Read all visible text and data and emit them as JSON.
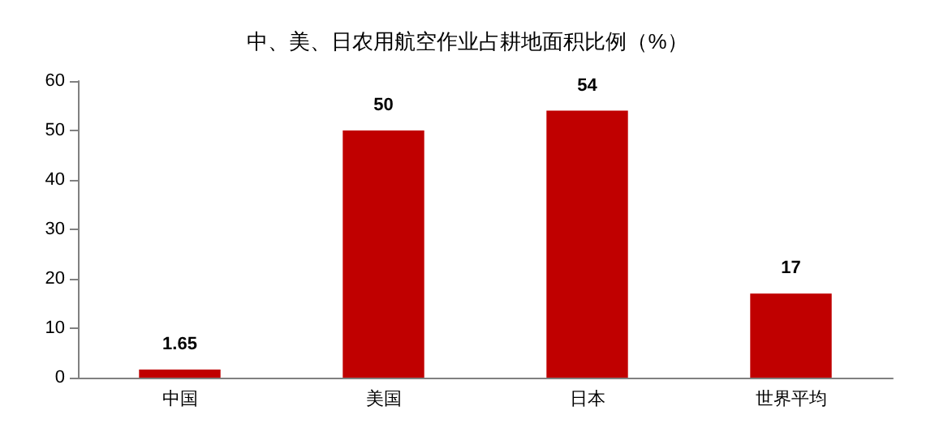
{
  "chart_data": {
    "type": "bar",
    "title": "中、美、日农用航空作业占耕地面积比例（%）",
    "categories": [
      "中国",
      "美国",
      "日本",
      "世界平均"
    ],
    "values": [
      1.65,
      50,
      54,
      17
    ],
    "color": "#c00000",
    "ylim": [
      0,
      60
    ],
    "yticks": [
      0,
      10,
      20,
      30,
      40,
      50,
      60
    ],
    "grid": false,
    "data_labels": true
  }
}
